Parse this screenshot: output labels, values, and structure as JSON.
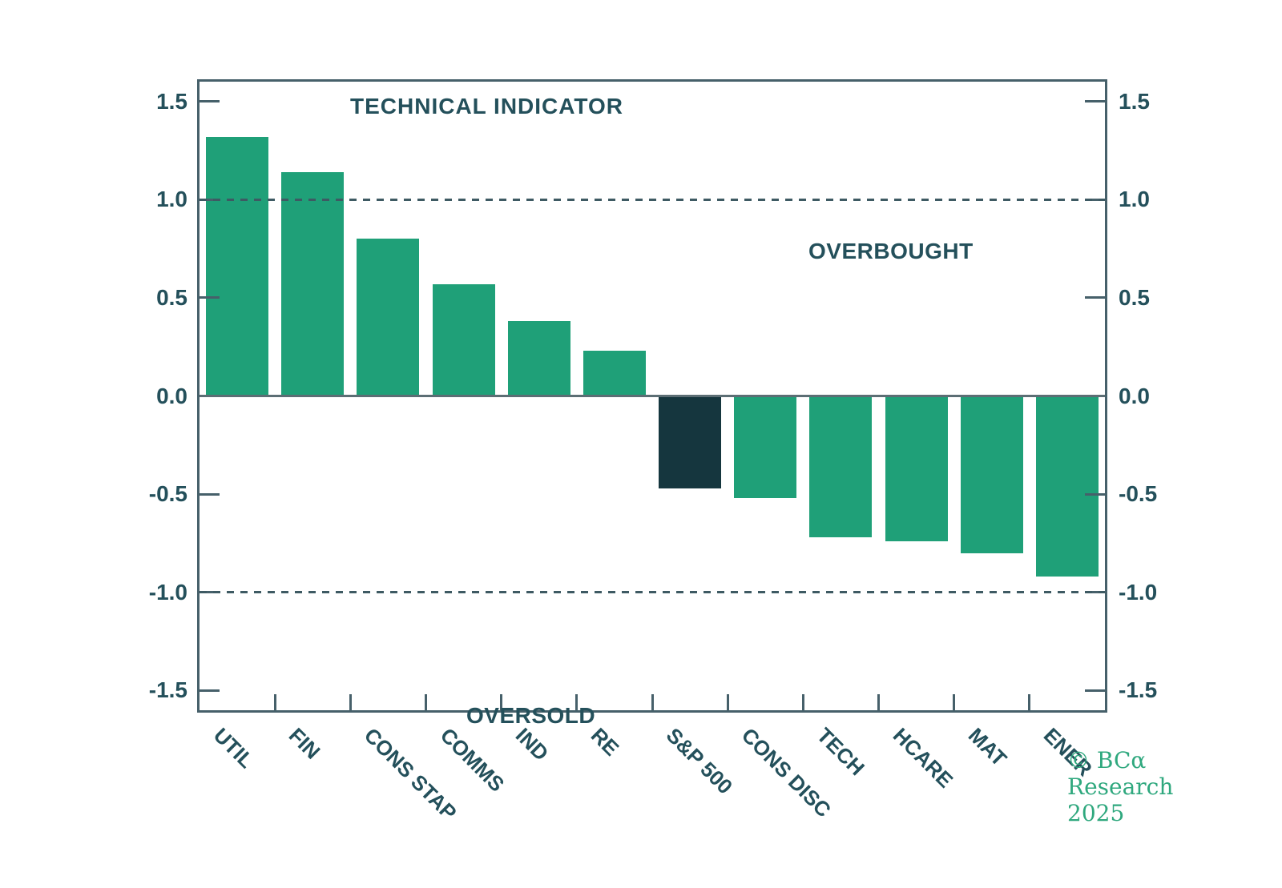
{
  "chart_data": {
    "type": "bar",
    "title": "TECHNICAL INDICATOR",
    "categories": [
      "UTIL",
      "FIN",
      "CONS STAP",
      "COMMS",
      "IND",
      "RE",
      "S&P 500",
      "CONS DISC",
      "TECH",
      "HCARE",
      "MAT",
      "ENER"
    ],
    "values": [
      1.32,
      1.14,
      0.8,
      0.57,
      0.38,
      0.23,
      -0.47,
      -0.52,
      -0.72,
      -0.74,
      -0.8,
      -0.92
    ],
    "highlight_category": "S&P 500",
    "annotations": {
      "overbought": "OVERBOUGHT",
      "oversold": "OVERSOLD"
    },
    "reference_lines": [
      1.0,
      -1.0
    ],
    "y_ticks": [
      1.5,
      1.0,
      0.5,
      0.0,
      -0.5,
      -1.0,
      -1.5
    ],
    "y_tick_labels": [
      "1.5",
      "1.0",
      "0.5",
      "0.0",
      "-0.5",
      "-1.0",
      "-1.5"
    ],
    "ylim": [
      -1.6,
      1.6
    ],
    "xlabel": "",
    "ylabel": "",
    "grid": false,
    "legend": "none",
    "colors": {
      "bar": "#1fa078",
      "highlight_bar": "#15363e",
      "text": "#24505b",
      "axis": "#46606a",
      "zero_line": "#5c6e74",
      "dashed_line": "#3e5a63",
      "copyright": "#2fa87e",
      "background": "#ffffff"
    }
  },
  "footer": {
    "copyright": "© BCα Research 2025"
  }
}
